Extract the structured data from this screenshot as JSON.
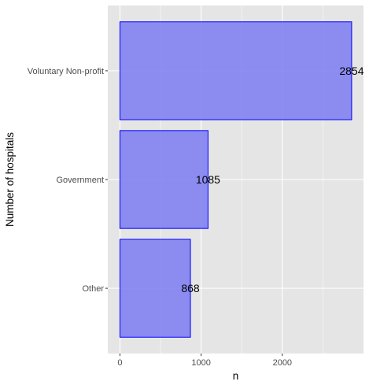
{
  "chart_data": {
    "type": "bar",
    "orientation": "horizontal",
    "categories": [
      "Voluntary Non-profit",
      "Government",
      "Other"
    ],
    "values": [
      2854,
      1085,
      868
    ],
    "xlabel": "n",
    "ylabel": "Number of hospitals",
    "xlim": [
      -150,
      3000
    ],
    "xticks": [
      0,
      1000,
      2000
    ],
    "xtick_labels": [
      "0",
      "1000",
      "2000"
    ],
    "data_labels": [
      "2854",
      "1085",
      "868"
    ],
    "grid": true,
    "legend": "none",
    "colors": {
      "bar_fill": "#7b7bf2",
      "bar_stroke": "#0000ff",
      "panel_background": "#e5e5e5",
      "grid_major": "#ffffff"
    }
  }
}
